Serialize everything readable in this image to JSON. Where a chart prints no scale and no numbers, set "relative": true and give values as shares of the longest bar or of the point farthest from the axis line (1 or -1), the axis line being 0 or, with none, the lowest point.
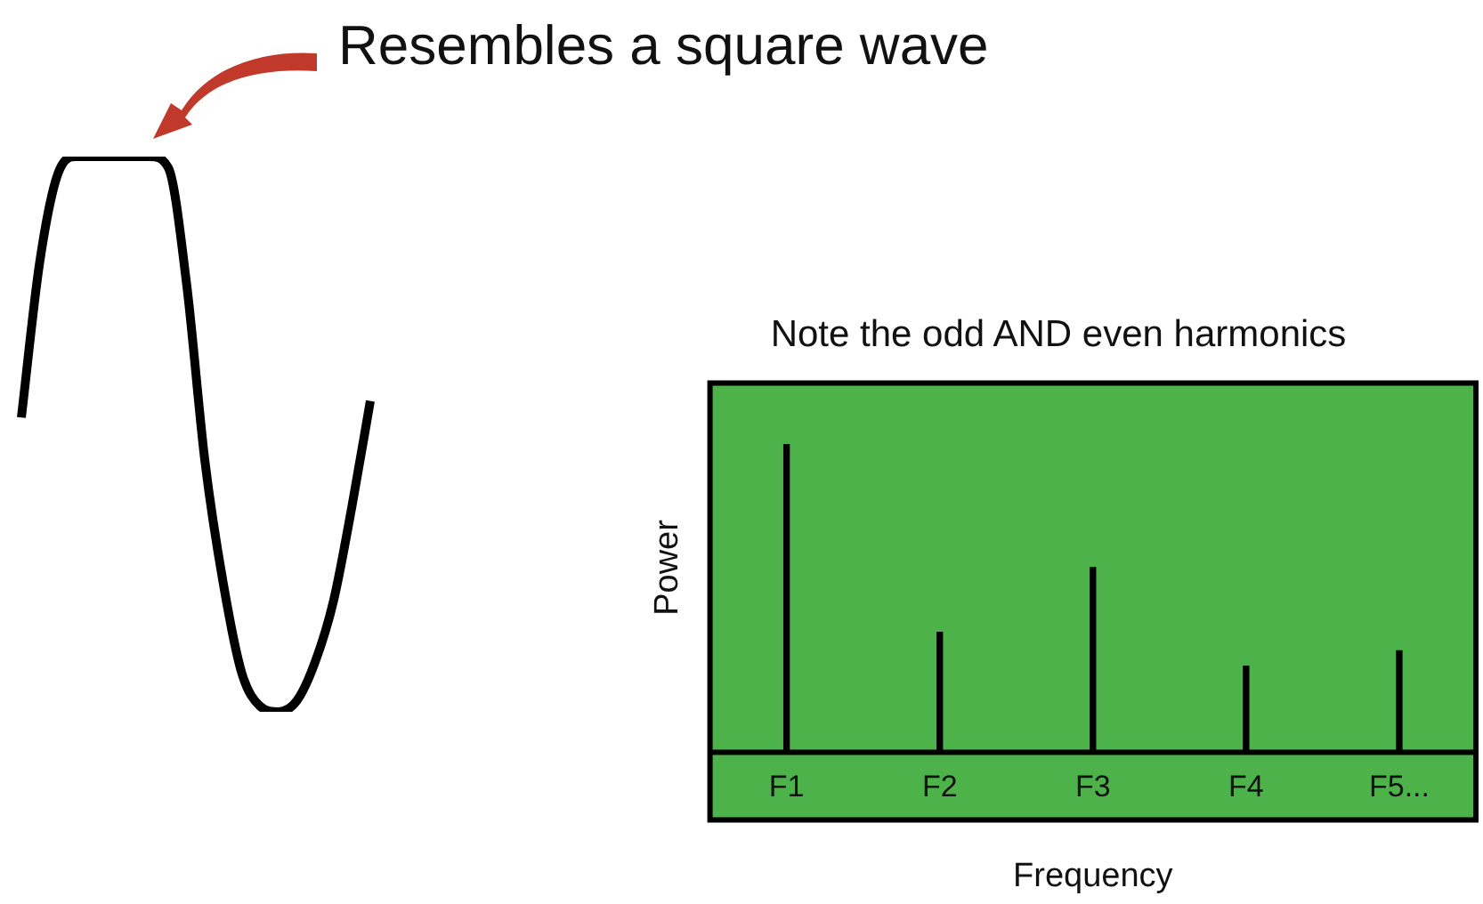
{
  "chart_data": [
    {
      "type": "line",
      "relative": true,
      "categories": [
        null,
        null,
        null,
        null,
        null,
        null,
        null,
        null,
        null,
        null,
        null,
        null,
        null,
        null,
        null,
        null,
        null,
        null,
        null,
        null
      ],
      "series": [
        {
          "color": "#000000",
          "values": [
            0.53,
            0.81,
            0.97,
            1,
            1,
            1,
            1,
            1,
            0.98,
            0.77,
            0.45,
            0.23,
            0.07,
            0.01,
            0,
            0.02,
            0.09,
            0.2,
            0.37,
            0.56
          ]
        }
      ],
      "annotations": [
        "Resembles a square wave"
      ],
      "marker": "none"
    },
    {
      "type": "bar",
      "relative": true,
      "title": "Note the odd AND even harmonics",
      "xlabel": "Frequency",
      "ylabel": "Power",
      "categories": [
        "F1",
        "F2",
        "F3",
        "F4",
        "F5..."
      ],
      "series": [
        {
          "color": "#000000",
          "values": [
            1,
            0.39,
            0.6,
            0.28,
            0.33
          ]
        }
      ]
    }
  ]
}
